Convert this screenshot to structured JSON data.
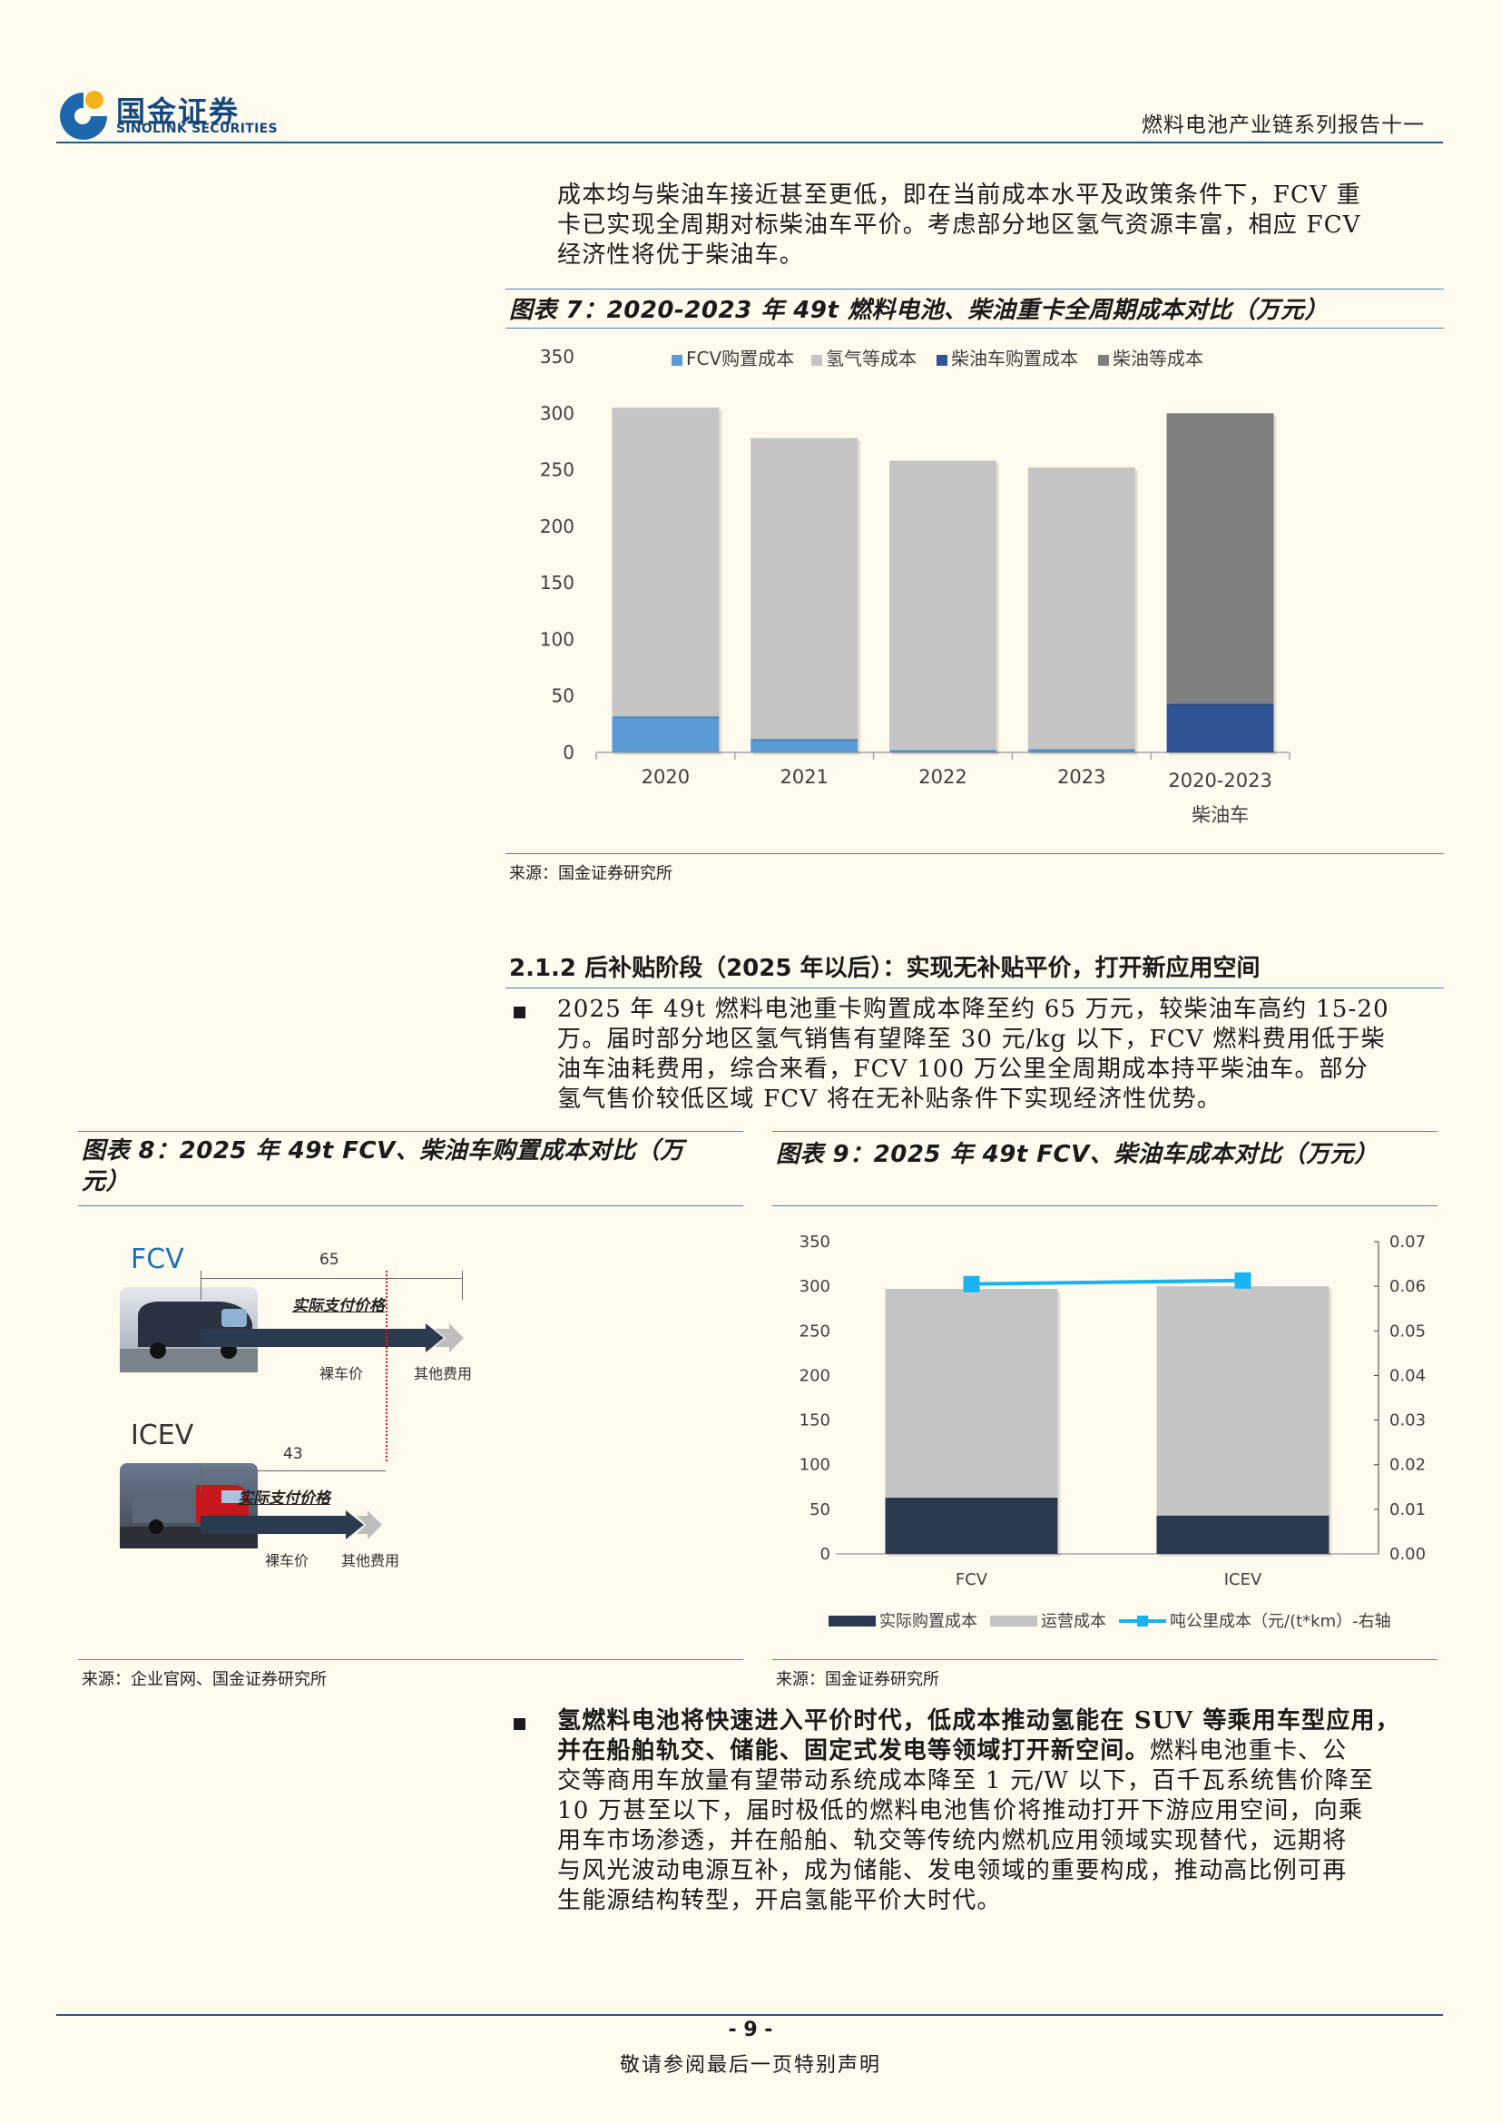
{
  "header": {
    "logo_cn": "国金证券",
    "logo_en": "SINOLINK SECURITIES",
    "report_series": "燃料电池产业链系列报告十一"
  },
  "intro_paragraph": [
    "成本均与柴油车接近甚至更低，即在当前成本水平及政策条件下，FCV 重",
    "卡已实现全周期对标柴油车平价。考虑部分地区氢气资源丰富，相应 FCV",
    "经济性将优于柴油车。"
  ],
  "figure7": {
    "caption": "图表 7：2020-2023 年 49t 燃料电池、柴油重卡全周期成本对比（万元）",
    "source": "来源：国金证券研究所",
    "chart_data": {
      "type": "bar",
      "stacked": true,
      "categories": [
        "2020",
        "2021",
        "2022",
        "2023",
        "2020-2023"
      ],
      "category_sublabels": [
        "",
        "",
        "",
        "",
        "柴油车"
      ],
      "ylim": [
        0,
        350
      ],
      "yticks": [
        "0",
        "50",
        "100",
        "150",
        "200",
        "250",
        "300",
        "350"
      ],
      "legend_position": "top",
      "series": [
        {
          "name": "FCV购置成本",
          "color": "#5b9bd5",
          "values": [
            32,
            12,
            2,
            3,
            0
          ]
        },
        {
          "name": "氢气等成本",
          "color": "#c4c4c4",
          "values": [
            273,
            266,
            256,
            249,
            0
          ]
        },
        {
          "name": "柴油车购置成本",
          "color": "#2f5597",
          "values": [
            0,
            0,
            0,
            0,
            43
          ]
        },
        {
          "name": "柴油等成本",
          "color": "#7f7f7f",
          "values": [
            0,
            0,
            0,
            0,
            257
          ]
        }
      ]
    }
  },
  "section": {
    "heading": "2.1.2 后补贴阶段（2025 年以后）：实现无补贴平价，打开新应用空间",
    "bullet1": [
      "2025 年 49t 燃料电池重卡购置成本降至约 65 万元，较柴油车高约 15-20",
      "万。届时部分地区氢气销售有望降至 30 元/kg 以下，FCV 燃料费用低于柴",
      "油车油耗费用，综合来看，FCV 100 万公里全周期成本持平柴油车。部分",
      "氢气售价较低区域 FCV 将在无补贴条件下实现经济性优势。"
    ]
  },
  "figure8": {
    "caption_line1": "图表 8：2025 年 49t FCV、柴油车购置成本对比（万",
    "caption_line2": "元）",
    "source": "来源：企业官网、国金证券研究所",
    "fcv_label": "FCV",
    "icev_label": "ICEV",
    "fcv_total": "65",
    "icev_total": "43",
    "actual_price_label": "实际支付价格",
    "bare_price_label": "裸车价",
    "other_fees_label": "其他费用"
  },
  "figure9": {
    "caption": "图表 9：2025 年 49t FCV、柴油车成本对比（万元）",
    "source": "来源：国金证券研究所",
    "chart_data": {
      "type": "bar",
      "stacked": true,
      "categories": [
        "FCV",
        "ICEV"
      ],
      "ylim": [
        0,
        350
      ],
      "y2lim": [
        0,
        0.07
      ],
      "yticks": [
        "0",
        "50",
        "100",
        "150",
        "200",
        "250",
        "300",
        "350"
      ],
      "y2ticks": [
        "0.00",
        "0.01",
        "0.02",
        "0.03",
        "0.04",
        "0.05",
        "0.06",
        "0.07"
      ],
      "legend_position": "bottom",
      "series": [
        {
          "name": "实际购置成本",
          "color": "#2b3a4e",
          "values": [
            63,
            43
          ]
        },
        {
          "name": "运营成本",
          "color": "#c4c4c4",
          "values": [
            234,
            257
          ]
        },
        {
          "name": "吨公里成本（元/(t*km）-右轴",
          "color": "#18b4f0",
          "type": "line",
          "axis": "right",
          "values": [
            0.0605,
            0.0613
          ]
        }
      ]
    }
  },
  "bullet2": {
    "bold": "氢燃料电池将快速进入平价时代，低成本推动氢能在 SUV 等乘用车型应用，并在船舶轨交、储能、固定式发电等领域打开新空间。",
    "lines": [
      "氢燃料电池将快速进入平价时代，低成本推动氢能在 SUV 等乘用车型应用，",
      "并在船舶轨交、储能、固定式发电等领域打开新空间。燃料电池重卡、公",
      "交等商用车放量有望带动系统成本降至 1 元/W 以下，百千瓦系统售价降至",
      "10 万甚至以下，届时极低的燃料电池售价将推动打开下游应用空间，向乘",
      "用车市场渗透，并在船舶、轨交等传统内燃机应用领域实现替代，远期将",
      "与风光波动电源互补，成为储能、发电领域的重要构成，推动高比例可再",
      "生能源结构转型，开启氢能平价大时代。"
    ]
  },
  "footer": {
    "page_number": "- 9 -",
    "disclaimer": "敬请参阅最后一页特别声明"
  }
}
